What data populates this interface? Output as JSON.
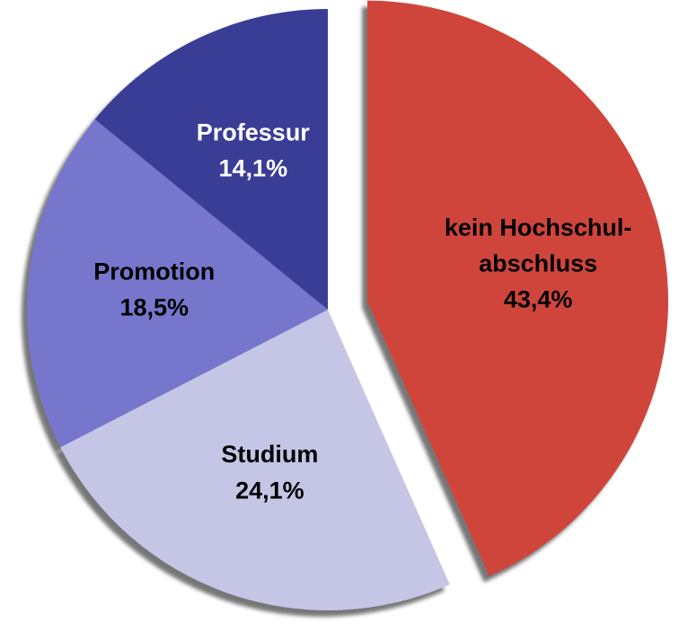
{
  "chart_data": {
    "type": "pie",
    "categories": [
      "kein Hochschul-abschluss",
      "Studium",
      "Promotion",
      "Professur"
    ],
    "values": [
      43.4,
      24.1,
      18.5,
      14.1
    ],
    "value_labels": [
      "43,4%",
      "24,1%",
      "18,5%",
      "14,1%"
    ],
    "colors": [
      "#d0453b",
      "#c5c5e6",
      "#7677cc",
      "#3a3d96"
    ],
    "exploded": [
      true,
      false,
      false,
      false
    ]
  }
}
